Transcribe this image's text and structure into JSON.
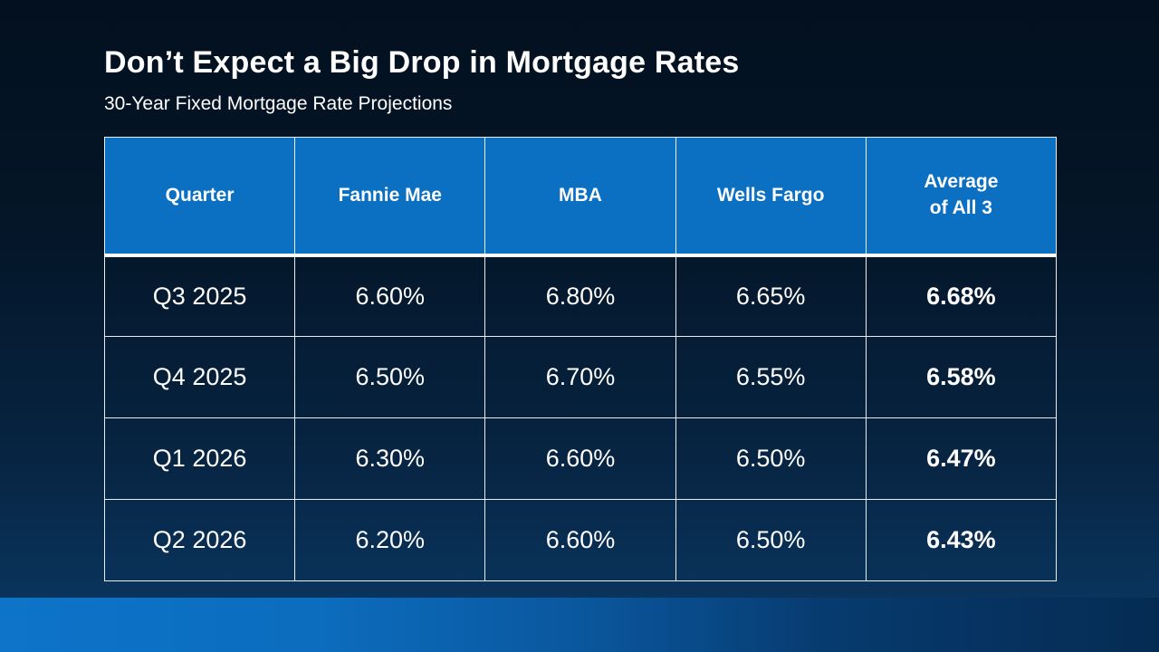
{
  "slide": {
    "title": "Don’t Expect a Big Drop in Mortgage Rates",
    "subtitle": "30-Year Fixed Mortgage Rate Projections"
  },
  "colors": {
    "header_background": "#0b6fc2",
    "background_top": "#03101f",
    "background_bottom": "#0b3a67",
    "table_border": "#e9eef4",
    "text": "#ffffff",
    "footer_accent": "#0d74c9"
  },
  "chart_data": {
    "type": "table",
    "title": "30-Year Fixed Mortgage Rate Projections",
    "columns": [
      "Quarter",
      "Fannie Mae",
      "MBA",
      "Wells Fargo",
      "Average\nof All 3"
    ],
    "rows": [
      [
        "Q3 2025",
        "6.60%",
        "6.80%",
        "6.65%",
        "6.68%"
      ],
      [
        "Q4 2025",
        "6.50%",
        "6.70%",
        "6.55%",
        "6.58%"
      ],
      [
        "Q1 2026",
        "6.30%",
        "6.60%",
        "6.50%",
        "6.47%"
      ],
      [
        "Q2 2026",
        "6.20%",
        "6.60%",
        "6.50%",
        "6.43%"
      ]
    ],
    "notes": "Average of All 3 column is emphasized in bold; header row has blue background"
  }
}
